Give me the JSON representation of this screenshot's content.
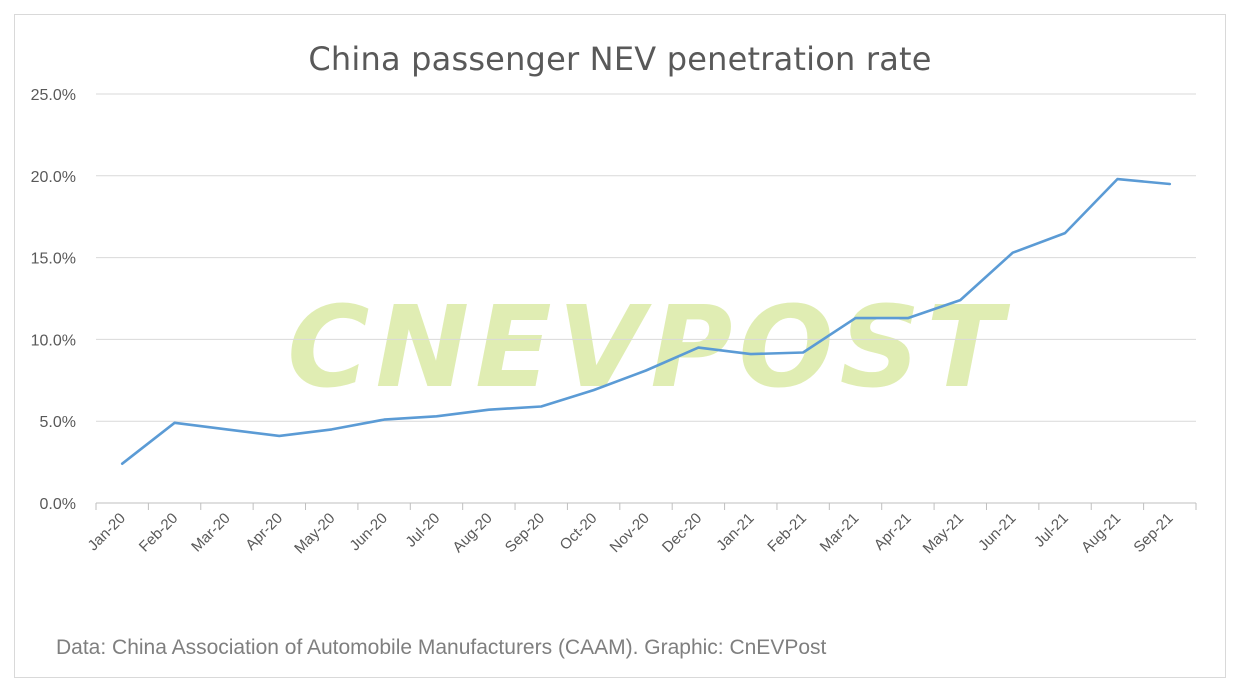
{
  "chart_data": {
    "type": "line",
    "title": "China passenger NEV penetration rate",
    "xlabel": "",
    "ylabel": "",
    "ylim": [
      0,
      25
    ],
    "yticks": [
      "0.0%",
      "5.0%",
      "10.0%",
      "15.0%",
      "20.0%",
      "25.0%"
    ],
    "ytick_values": [
      0,
      5,
      10,
      15,
      20,
      25
    ],
    "grid": true,
    "categories": [
      "Jan-20",
      "Feb-20",
      "Mar-20",
      "Apr-20",
      "May-20",
      "Jun-20",
      "Jul-20",
      "Aug-20",
      "Sep-20",
      "Oct-20",
      "Nov-20",
      "Dec-20",
      "Jan-21",
      "Feb-21",
      "Mar-21",
      "Apr-21",
      "May-21",
      "Jun-21",
      "Jul-21",
      "Aug-21",
      "Sep-21"
    ],
    "series": [
      {
        "name": "NEV penetration rate",
        "color": "#5b9bd5",
        "values": [
          2.4,
          4.9,
          4.5,
          4.1,
          4.5,
          5.1,
          5.3,
          5.7,
          5.9,
          6.9,
          8.1,
          9.5,
          9.1,
          9.2,
          11.3,
          11.3,
          12.4,
          15.3,
          16.5,
          19.8,
          19.5
        ]
      }
    ],
    "watermark": "CnEVPost",
    "source": "Data: China Association of Automobile Manufacturers (CAAM). Graphic: CnEVPost"
  }
}
